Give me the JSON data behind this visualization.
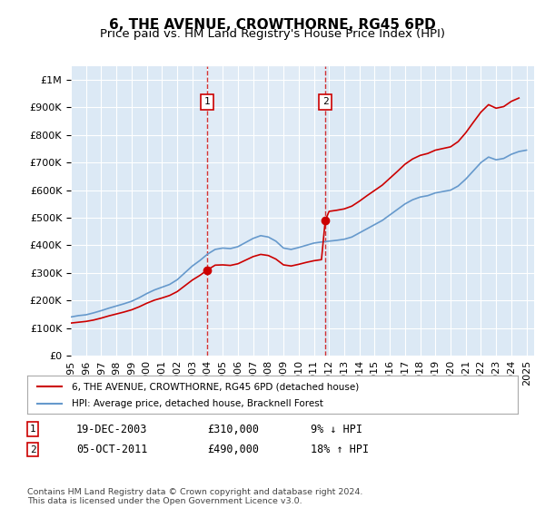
{
  "title": "6, THE AVENUE, CROWTHORNE, RG45 6PD",
  "subtitle": "Price paid vs. HM Land Registry's House Price Index (HPI)",
  "ylabel_ticks": [
    "£0",
    "£100K",
    "£200K",
    "£300K",
    "£400K",
    "£500K",
    "£600K",
    "£700K",
    "£800K",
    "£900K",
    "£1M"
  ],
  "ytick_vals": [
    0,
    100000,
    200000,
    300000,
    400000,
    500000,
    600000,
    700000,
    800000,
    900000,
    1000000
  ],
  "ylim": [
    0,
    1050000
  ],
  "xlim_start": 1995.0,
  "xlim_end": 2025.5,
  "background_color": "#ffffff",
  "plot_bg_color": "#dce9f5",
  "grid_color": "#ffffff",
  "hpi_color": "#6699cc",
  "price_color": "#cc0000",
  "marker1_x": 2003.97,
  "marker1_y": 310000,
  "marker2_x": 2011.75,
  "marker2_y": 490000,
  "vline1_x": 2003.97,
  "vline2_x": 2011.75,
  "legend_line1": "6, THE AVENUE, CROWTHORNE, RG45 6PD (detached house)",
  "legend_line2": "HPI: Average price, detached house, Bracknell Forest",
  "annotation1_label": "1",
  "annotation2_label": "2",
  "table_row1": [
    "1",
    "19-DEC-2003",
    "£310,000",
    "9% ↓ HPI"
  ],
  "table_row2": [
    "2",
    "05-OCT-2011",
    "£490,000",
    "18% ↑ HPI"
  ],
  "footnote": "Contains HM Land Registry data © Crown copyright and database right 2024.\nThis data is licensed under the Open Government Licence v3.0.",
  "title_fontsize": 11,
  "subtitle_fontsize": 9.5,
  "tick_fontsize": 8,
  "xticks": [
    1995,
    1996,
    1997,
    1998,
    1999,
    2000,
    2001,
    2002,
    2003,
    2004,
    2005,
    2006,
    2007,
    2008,
    2009,
    2010,
    2011,
    2012,
    2013,
    2014,
    2015,
    2016,
    2017,
    2018,
    2019,
    2020,
    2021,
    2022,
    2023,
    2024,
    2025
  ]
}
